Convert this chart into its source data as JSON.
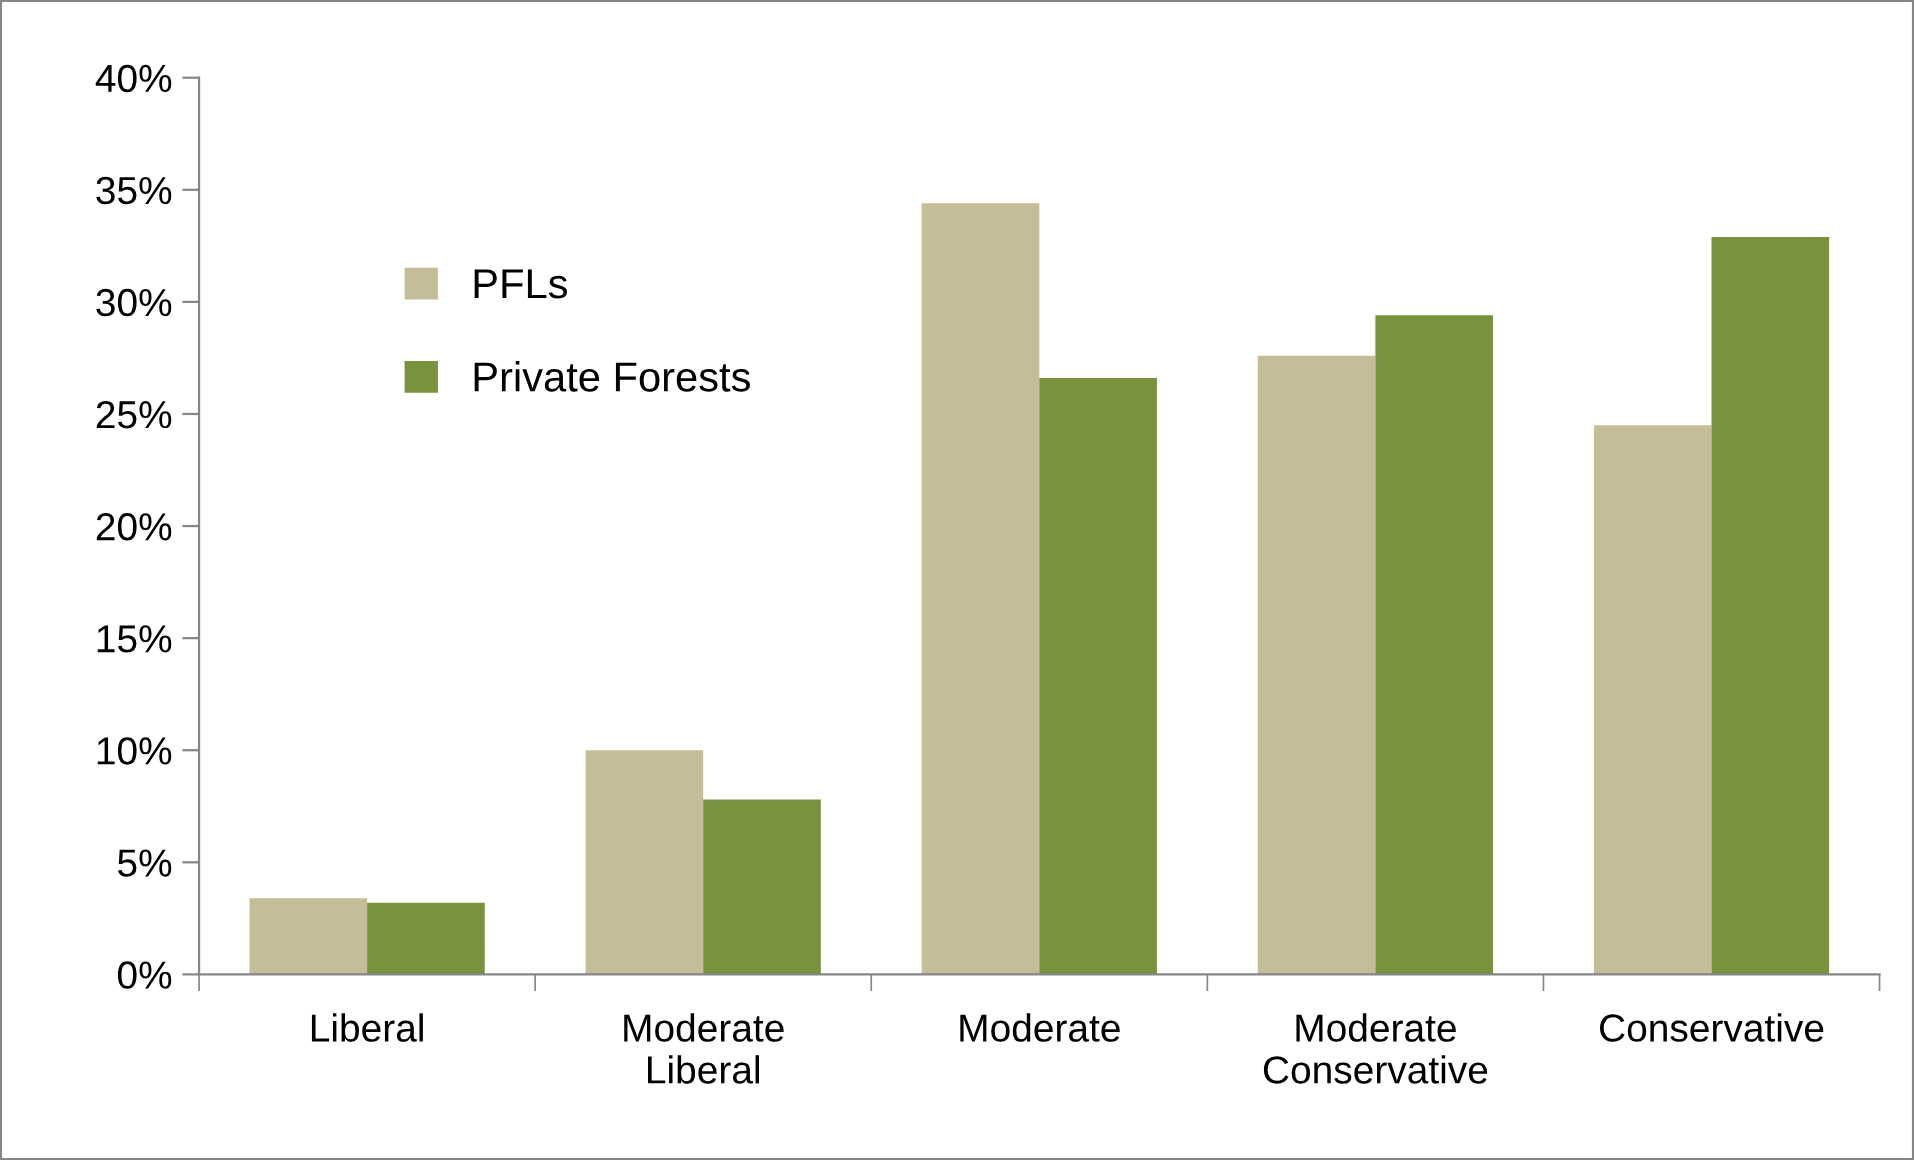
{
  "chart_data": {
    "type": "bar",
    "categories": [
      "Liberal",
      "Moderate\nLiberal",
      "Moderate",
      "Moderate\nConservative",
      "Conservative"
    ],
    "series": [
      {
        "name": "PFLs",
        "color": "#c4bd97",
        "values": [
          3.4,
          10.0,
          34.4,
          27.6,
          24.5
        ]
      },
      {
        "name": "Private Forests",
        "color": "#77933c",
        "values": [
          3.2,
          7.8,
          26.6,
          29.4,
          32.9
        ]
      }
    ],
    "ylim": [
      0,
      40
    ],
    "yticks": [
      {
        "value": 0,
        "label": "0%"
      },
      {
        "value": 5,
        "label": "5%"
      },
      {
        "value": 10,
        "label": "10%"
      },
      {
        "value": 15,
        "label": "15%"
      },
      {
        "value": 20,
        "label": "20%"
      },
      {
        "value": 25,
        "label": "25%"
      },
      {
        "value": 30,
        "label": "30%"
      },
      {
        "value": 35,
        "label": "35%"
      },
      {
        "value": 40,
        "label": "40%"
      }
    ],
    "grid": false,
    "legend": "top left"
  }
}
